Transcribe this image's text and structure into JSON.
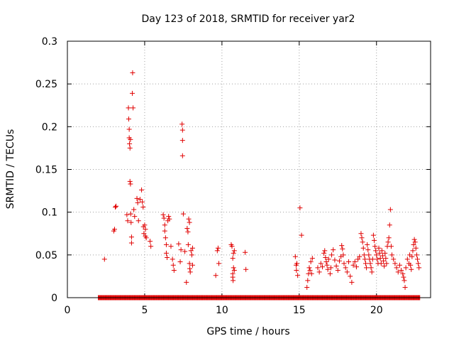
{
  "chart_data": {
    "type": "scatter",
    "title": "Day 123 of 2018, SRMTID for receiver yar2",
    "xlabel": "GPS time / hours",
    "ylabel": "SRMTID / TECUs",
    "xlim": [
      0,
      23.5
    ],
    "ylim": [
      0,
      0.3
    ],
    "xticks": [
      0,
      5,
      10,
      15,
      20
    ],
    "xtick_labels": [
      "0",
      "5",
      "10",
      "15",
      "20"
    ],
    "yticks": [
      0,
      0.05,
      0.1,
      0.15,
      0.2,
      0.25,
      0.3
    ],
    "ytick_labels": [
      "0",
      "0.05",
      "0.1",
      "0.15",
      "0.2",
      "0.25",
      "0.3"
    ],
    "grid": true,
    "marker": "plus",
    "color": "#e00000",
    "zero_series": {
      "x_start": 2.0,
      "x_end": 22.8,
      "step": 0.04,
      "y": 0
    },
    "series": [
      {
        "name": "SRMTID",
        "points": [
          [
            2.4,
            0.045
          ],
          [
            3.0,
            0.078
          ],
          [
            3.05,
            0.08
          ],
          [
            3.1,
            0.106
          ],
          [
            3.15,
            0.107
          ],
          [
            3.85,
            0.097
          ],
          [
            3.9,
            0.09
          ],
          [
            3.95,
            0.222
          ],
          [
            3.97,
            0.209
          ],
          [
            4.0,
            0.197
          ],
          [
            4.0,
            0.187
          ],
          [
            4.02,
            0.18
          ],
          [
            4.05,
            0.175
          ],
          [
            4.08,
            0.185
          ],
          [
            4.05,
            0.136
          ],
          [
            4.08,
            0.133
          ],
          [
            4.1,
            0.098
          ],
          [
            4.12,
            0.088
          ],
          [
            4.15,
            0.071
          ],
          [
            4.15,
            0.064
          ],
          [
            4.2,
            0.239
          ],
          [
            4.22,
            0.263
          ],
          [
            4.25,
            0.222
          ],
          [
            4.3,
            0.103
          ],
          [
            4.35,
            0.095
          ],
          [
            4.5,
            0.116
          ],
          [
            4.55,
            0.111
          ],
          [
            4.6,
            0.09
          ],
          [
            4.7,
            0.115
          ],
          [
            4.8,
            0.126
          ],
          [
            4.85,
            0.112
          ],
          [
            4.9,
            0.106
          ],
          [
            4.92,
            0.083
          ],
          [
            4.95,
            0.075
          ],
          [
            5.0,
            0.085
          ],
          [
            5.05,
            0.08
          ],
          [
            5.05,
            0.072
          ],
          [
            5.1,
            0.07
          ],
          [
            5.35,
            0.066
          ],
          [
            5.4,
            0.06
          ],
          [
            6.2,
            0.097
          ],
          [
            6.25,
            0.093
          ],
          [
            6.3,
            0.085
          ],
          [
            6.3,
            0.078
          ],
          [
            6.35,
            0.07
          ],
          [
            6.4,
            0.062
          ],
          [
            6.4,
            0.052
          ],
          [
            6.45,
            0.047
          ],
          [
            6.5,
            0.09
          ],
          [
            6.55,
            0.095
          ],
          [
            6.6,
            0.092
          ],
          [
            6.7,
            0.06
          ],
          [
            6.8,
            0.045
          ],
          [
            6.85,
            0.038
          ],
          [
            6.9,
            0.032
          ],
          [
            7.2,
            0.063
          ],
          [
            7.3,
            0.042
          ],
          [
            7.35,
            0.056
          ],
          [
            7.42,
            0.203
          ],
          [
            7.45,
            0.196
          ],
          [
            7.45,
            0.184
          ],
          [
            7.45,
            0.166
          ],
          [
            7.5,
            0.098
          ],
          [
            7.6,
            0.054
          ],
          [
            7.7,
            0.018
          ],
          [
            7.75,
            0.081
          ],
          [
            7.8,
            0.077
          ],
          [
            7.82,
            0.062
          ],
          [
            7.85,
            0.092
          ],
          [
            7.9,
            0.088
          ],
          [
            7.9,
            0.04
          ],
          [
            7.92,
            0.034
          ],
          [
            7.95,
            0.03
          ],
          [
            8.0,
            0.055
          ],
          [
            8.05,
            0.05
          ],
          [
            8.1,
            0.058
          ],
          [
            8.1,
            0.038
          ],
          [
            9.6,
            0.026
          ],
          [
            9.7,
            0.055
          ],
          [
            9.75,
            0.058
          ],
          [
            9.8,
            0.04
          ],
          [
            10.6,
            0.062
          ],
          [
            10.65,
            0.06
          ],
          [
            10.7,
            0.046
          ],
          [
            10.75,
            0.052
          ],
          [
            10.8,
            0.055
          ],
          [
            10.7,
            0.028
          ],
          [
            10.7,
            0.024
          ],
          [
            10.72,
            0.02
          ],
          [
            10.75,
            0.035
          ],
          [
            10.8,
            0.032
          ],
          [
            11.5,
            0.053
          ],
          [
            11.55,
            0.033
          ],
          [
            14.75,
            0.048
          ],
          [
            14.8,
            0.038
          ],
          [
            14.82,
            0.032
          ],
          [
            14.85,
            0.04
          ],
          [
            14.9,
            0.026
          ],
          [
            15.05,
            0.105
          ],
          [
            15.15,
            0.073
          ],
          [
            15.5,
            0.012
          ],
          [
            15.55,
            0.02
          ],
          [
            15.6,
            0.028
          ],
          [
            15.65,
            0.035
          ],
          [
            15.7,
            0.032
          ],
          [
            15.75,
            0.042
          ],
          [
            15.8,
            0.028
          ],
          [
            15.85,
            0.046
          ],
          [
            16.2,
            0.035
          ],
          [
            16.3,
            0.03
          ],
          [
            16.4,
            0.04
          ],
          [
            16.5,
            0.036
          ],
          [
            16.6,
            0.052
          ],
          [
            16.65,
            0.055
          ],
          [
            16.7,
            0.047
          ],
          [
            16.75,
            0.042
          ],
          [
            16.8,
            0.038
          ],
          [
            16.85,
            0.033
          ],
          [
            16.9,
            0.045
          ],
          [
            17.0,
            0.028
          ],
          [
            17.05,
            0.035
          ],
          [
            17.1,
            0.05
          ],
          [
            17.2,
            0.056
          ],
          [
            17.3,
            0.044
          ],
          [
            17.4,
            0.037
          ],
          [
            17.5,
            0.032
          ],
          [
            17.6,
            0.043
          ],
          [
            17.7,
            0.048
          ],
          [
            17.75,
            0.061
          ],
          [
            17.8,
            0.057
          ],
          [
            17.85,
            0.05
          ],
          [
            17.9,
            0.04
          ],
          [
            18.0,
            0.035
          ],
          [
            18.1,
            0.03
          ],
          [
            18.2,
            0.042
          ],
          [
            18.3,
            0.025
          ],
          [
            18.4,
            0.018
          ],
          [
            18.5,
            0.038
          ],
          [
            18.6,
            0.042
          ],
          [
            18.7,
            0.036
          ],
          [
            18.8,
            0.045
          ],
          [
            18.9,
            0.048
          ],
          [
            19.0,
            0.075
          ],
          [
            19.05,
            0.07
          ],
          [
            19.1,
            0.065
          ],
          [
            19.15,
            0.058
          ],
          [
            19.2,
            0.05
          ],
          [
            19.25,
            0.045
          ],
          [
            19.3,
            0.04
          ],
          [
            19.35,
            0.035
          ],
          [
            19.4,
            0.062
          ],
          [
            19.45,
            0.056
          ],
          [
            19.5,
            0.05
          ],
          [
            19.55,
            0.045
          ],
          [
            19.6,
            0.04
          ],
          [
            19.65,
            0.035
          ],
          [
            19.7,
            0.03
          ],
          [
            19.75,
            0.045
          ],
          [
            19.8,
            0.073
          ],
          [
            19.85,
            0.067
          ],
          [
            19.9,
            0.06
          ],
          [
            19.95,
            0.055
          ],
          [
            20.0,
            0.05
          ],
          [
            20.05,
            0.045
          ],
          [
            20.1,
            0.04
          ],
          [
            20.15,
            0.058
          ],
          [
            20.2,
            0.052
          ],
          [
            20.25,
            0.046
          ],
          [
            20.3,
            0.04
          ],
          [
            20.35,
            0.055
          ],
          [
            20.4,
            0.049
          ],
          [
            20.45,
            0.043
          ],
          [
            20.5,
            0.037
          ],
          [
            20.55,
            0.052
          ],
          [
            20.6,
            0.046
          ],
          [
            20.65,
            0.04
          ],
          [
            20.7,
            0.06
          ],
          [
            20.75,
            0.065
          ],
          [
            20.8,
            0.07
          ],
          [
            20.85,
            0.085
          ],
          [
            20.9,
            0.103
          ],
          [
            20.95,
            0.06
          ],
          [
            21.0,
            0.05
          ],
          [
            21.1,
            0.045
          ],
          [
            21.2,
            0.04
          ],
          [
            21.3,
            0.035
          ],
          [
            21.4,
            0.03
          ],
          [
            21.5,
            0.038
          ],
          [
            21.6,
            0.032
          ],
          [
            21.7,
            0.028
          ],
          [
            21.75,
            0.024
          ],
          [
            21.8,
            0.02
          ],
          [
            21.85,
            0.012
          ],
          [
            21.9,
            0.035
          ],
          [
            22.0,
            0.045
          ],
          [
            22.1,
            0.04
          ],
          [
            22.15,
            0.05
          ],
          [
            22.2,
            0.038
          ],
          [
            22.25,
            0.033
          ],
          [
            22.3,
            0.048
          ],
          [
            22.35,
            0.055
          ],
          [
            22.4,
            0.062
          ],
          [
            22.45,
            0.068
          ],
          [
            22.5,
            0.065
          ],
          [
            22.55,
            0.058
          ],
          [
            22.6,
            0.05
          ],
          [
            22.65,
            0.045
          ],
          [
            22.7,
            0.04
          ],
          [
            22.75,
            0.035
          ]
        ]
      }
    ]
  }
}
